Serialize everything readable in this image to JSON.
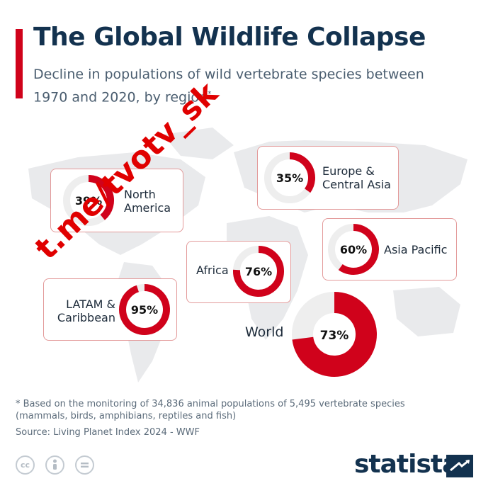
{
  "header": {
    "title": "The Global Wildlife Collapse",
    "subtitle": "Decline in populations of wild vertebrate species between 1970 and 2020, by region",
    "subtitle_mark": "*"
  },
  "chart_data": {
    "type": "pie",
    "title": "The Global Wildlife Collapse",
    "unit": "%",
    "categories": [
      "North America",
      "Europe & Central Asia",
      "Asia Pacific",
      "Africa",
      "LATAM & Caribbean",
      "World"
    ],
    "values": [
      39,
      35,
      60,
      76,
      95,
      73
    ],
    "labels": [
      "39%",
      "35%",
      "60%",
      "76%",
      "95%",
      "73%"
    ],
    "color": "#d0021b",
    "track_color": "#eeeeee"
  },
  "regions": [
    {
      "name_line1": "North",
      "name_line2": "America",
      "pct_label": "39%"
    },
    {
      "name_line1": "Europe &",
      "name_line2": "Central Asia",
      "pct_label": "35%"
    },
    {
      "name_line1": "Asia Pacific",
      "pct_label": "60%"
    },
    {
      "name_line1": "Africa",
      "pct_label": "76%"
    },
    {
      "name_line1": "LATAM &",
      "name_line2": "Caribbean",
      "pct_label": "95%"
    },
    {
      "name_line1": "World",
      "pct_label": "73%"
    }
  ],
  "footer": {
    "footnote": "* Based on the monitoring of 34,836 animal populations of 5,495 vertebrate species (mammals, birds, amphibians, reptiles and fish)",
    "source": "Source: Living Planet Index 2024 - WWF",
    "license_icons": [
      "cc-icon",
      "attribution-icon",
      "no-derivatives-icon"
    ],
    "brand": "statista"
  },
  "watermark": "t.me/tvotv_sk"
}
